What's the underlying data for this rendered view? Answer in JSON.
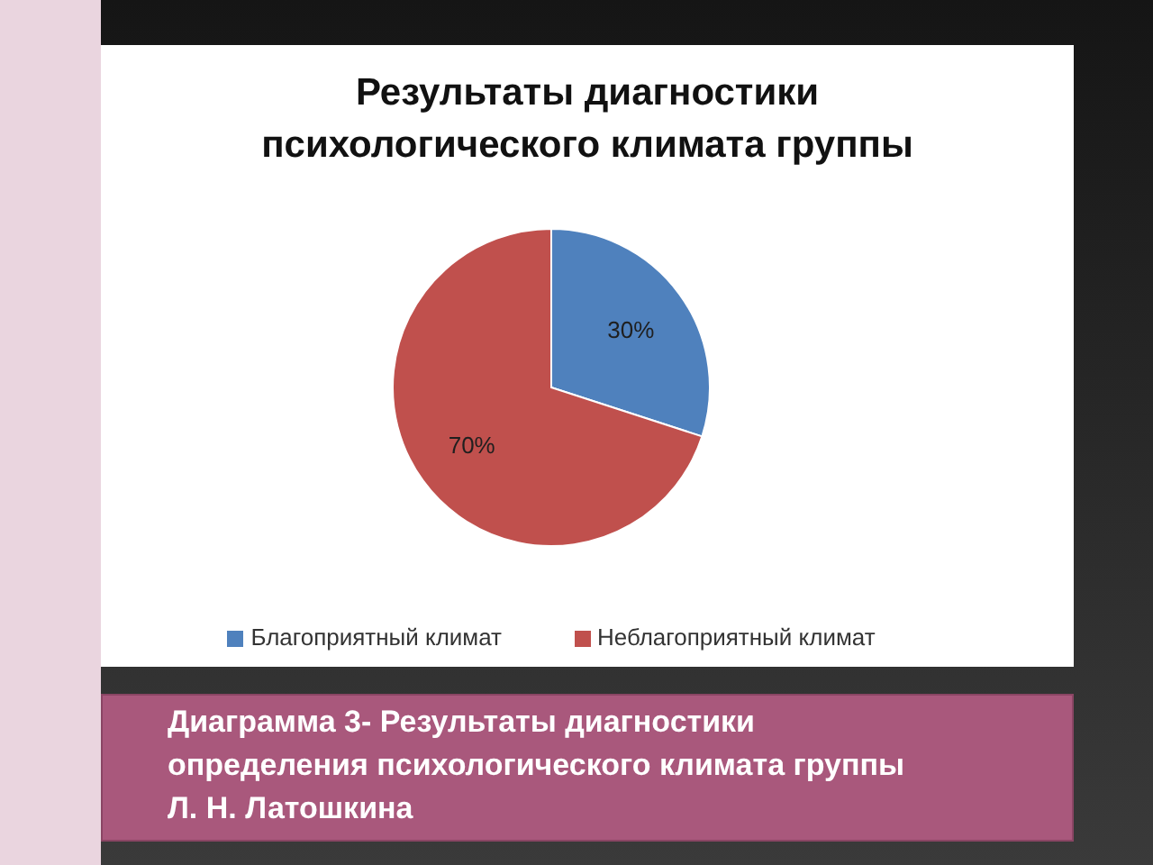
{
  "chart_data": {
    "type": "pie",
    "title": "Результаты диагностики психологического климата группы",
    "categories": [
      "Благоприятный климат",
      "Неблагоприятный климат"
    ],
    "values": [
      30,
      70
    ],
    "value_labels": [
      "30%",
      "70%"
    ],
    "colors": [
      "#4f81bd",
      "#c0504d"
    ],
    "legend": "bottom",
    "annotations": [
      "Диаграмма 3- Результаты диагностики определения психологического климата группы Л. Н. Латошкина"
    ]
  }
}
